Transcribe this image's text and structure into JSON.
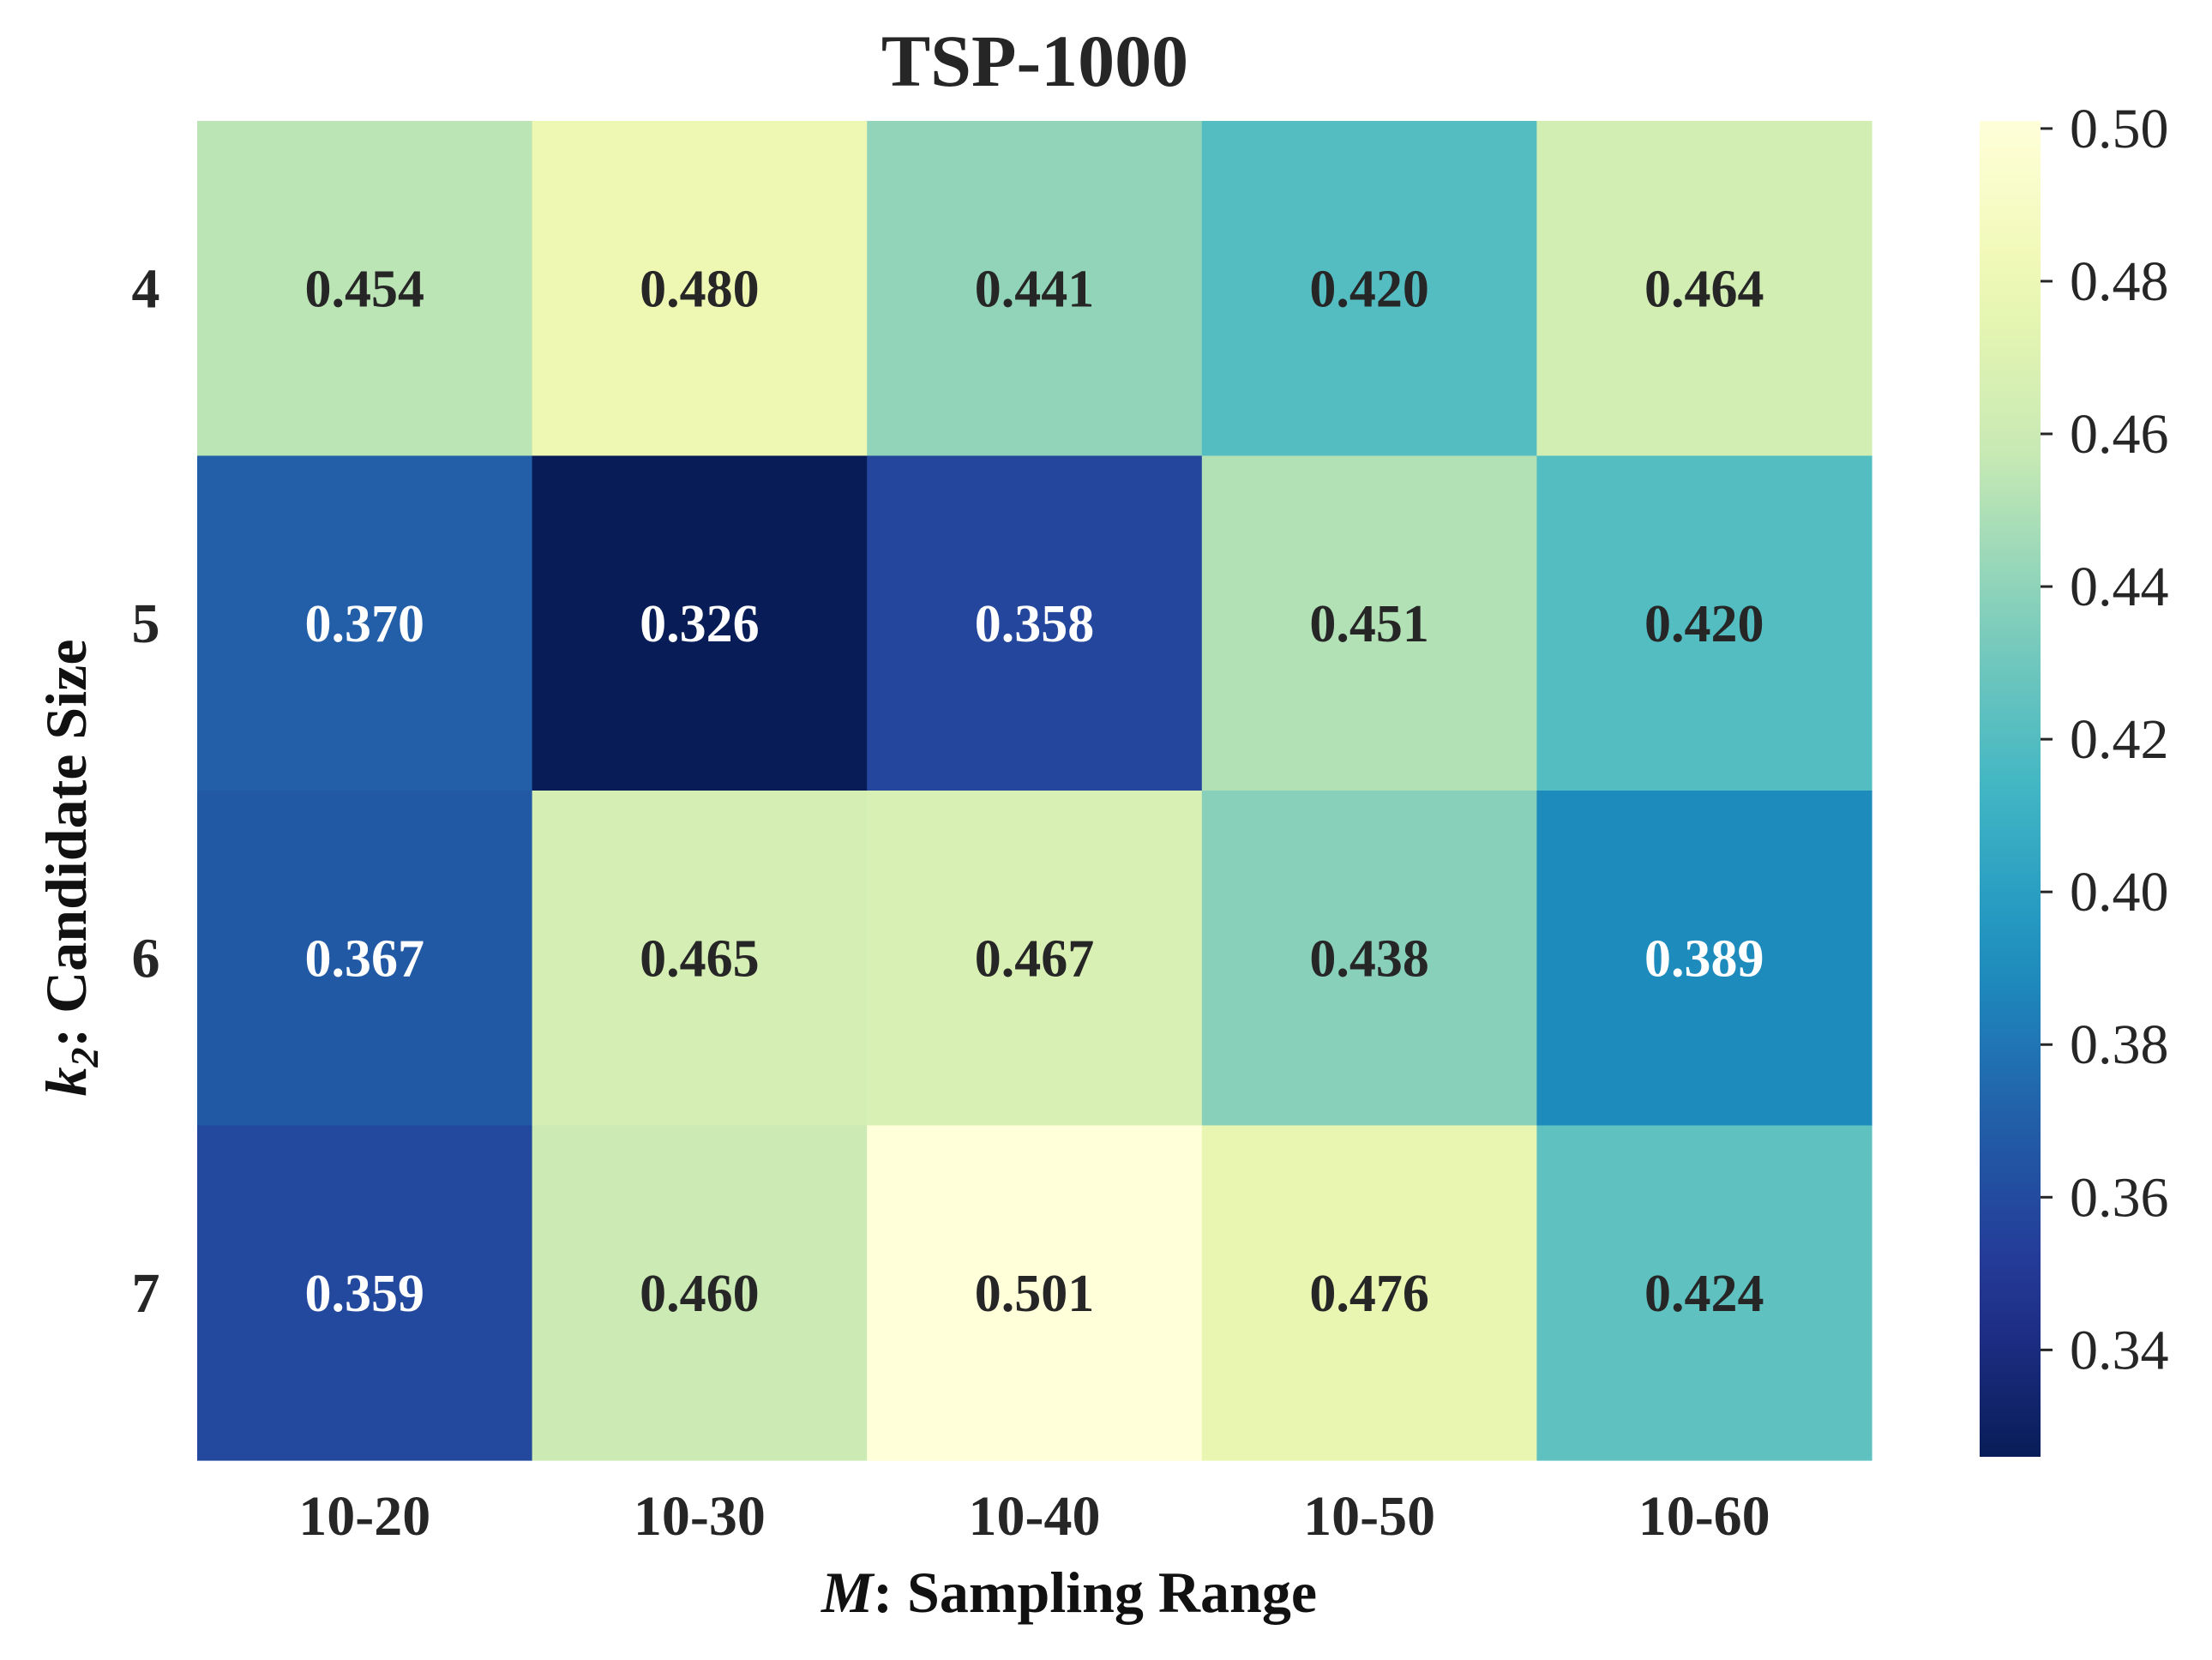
{
  "chart_data": {
    "type": "heatmap",
    "title": "TSP-1000",
    "xlabel_var": "M",
    "xlabel_text": ": Sampling Range",
    "ylabel_var": "k",
    "ylabel_sub": "2",
    "ylabel_text": ": Candidate Size",
    "x_categories": [
      "10-20",
      "10-30",
      "10-40",
      "10-50",
      "10-60"
    ],
    "y_categories": [
      "4",
      "5",
      "6",
      "7"
    ],
    "values": [
      [
        0.454,
        0.48,
        0.441,
        0.42,
        0.464
      ],
      [
        0.37,
        0.326,
        0.358,
        0.451,
        0.42
      ],
      [
        0.367,
        0.465,
        0.467,
        0.438,
        0.389
      ],
      [
        0.359,
        0.46,
        0.501,
        0.476,
        0.424
      ]
    ],
    "value_labels": [
      [
        "0.454",
        "0.480",
        "0.441",
        "0.420",
        "0.464"
      ],
      [
        "0.370",
        "0.326",
        "0.358",
        "0.451",
        "0.420"
      ],
      [
        "0.367",
        "0.465",
        "0.467",
        "0.438",
        "0.389"
      ],
      [
        "0.359",
        "0.460",
        "0.501",
        "0.476",
        "0.424"
      ]
    ],
    "colormap": "YlGnBu",
    "vmin": 0.326,
    "vmax": 0.501,
    "colorbar_ticks": [
      0.34,
      0.36,
      0.38,
      0.4,
      0.42,
      0.44,
      0.46,
      0.48,
      0.5
    ],
    "colorbar_tick_labels": [
      "0.34",
      "0.36",
      "0.38",
      "0.40",
      "0.42",
      "0.44",
      "0.46",
      "0.48",
      "0.50"
    ],
    "text_color_dark": "#262626",
    "text_color_light": "#ffffff"
  }
}
